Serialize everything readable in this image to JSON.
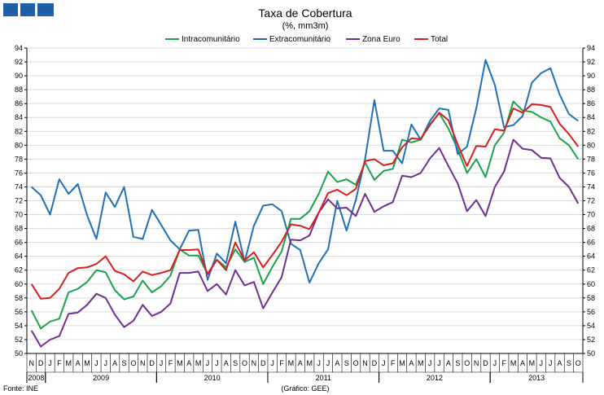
{
  "colors": {
    "logo": "#1f5fa8",
    "intracomunitario": "#1aa34a",
    "extracomunitario": "#2070b8",
    "zona_euro": "#6e2f91",
    "total": "#d81e1e",
    "grid": "#d9d9d9",
    "axis": "#000000"
  },
  "footer": {
    "source": "Fonte: INE",
    "credit": "(Gráfico: GEE)"
  },
  "chart_data": {
    "type": "line",
    "title": "Taxa de Cobertura",
    "subtitle": "(%, mm3m)",
    "legend_position": "top",
    "grid": true,
    "ylim": [
      50,
      94
    ],
    "yticks": [
      50,
      52,
      54,
      56,
      58,
      60,
      62,
      64,
      66,
      68,
      70,
      72,
      74,
      76,
      78,
      80,
      82,
      84,
      86,
      88,
      90,
      92,
      94
    ],
    "y_axes": "left and right, mirrored",
    "x": [
      "N",
      "D",
      "J",
      "F",
      "M",
      "A",
      "M",
      "J",
      "J",
      "A",
      "S",
      "O",
      "N",
      "D",
      "J",
      "F",
      "M",
      "A",
      "M",
      "J",
      "J",
      "A",
      "S",
      "O",
      "N",
      "D",
      "J",
      "F",
      "M",
      "A",
      "M",
      "J",
      "J",
      "A",
      "S",
      "O",
      "N",
      "D",
      "J",
      "F",
      "M",
      "A",
      "M",
      "J",
      "J",
      "A",
      "S",
      "O",
      "N",
      "D",
      "J",
      "F",
      "M",
      "A",
      "M",
      "J",
      "J",
      "A",
      "S",
      "O"
    ],
    "year_groups": [
      {
        "label": "2008",
        "start": 0,
        "count": 2
      },
      {
        "label": "2009",
        "start": 2,
        "count": 12
      },
      {
        "label": "2010",
        "start": 14,
        "count": 12
      },
      {
        "label": "2011",
        "start": 26,
        "count": 12
      },
      {
        "label": "2012",
        "start": 38,
        "count": 12
      },
      {
        "label": "2013",
        "start": 50,
        "count": 10
      }
    ],
    "series": [
      {
        "name": "Intracomunitário",
        "key": "intracomunitario",
        "values": [
          56.2,
          53.6,
          54.6,
          55.0,
          58.8,
          59.3,
          60.3,
          62.0,
          61.7,
          59.1,
          57.8,
          58.2,
          60.5,
          58.8,
          59.7,
          61.2,
          65.0,
          64.1,
          64.1,
          61.5,
          63.5,
          62.4,
          65.0,
          63.2,
          63.8,
          60.0,
          62.5,
          64.7,
          69.4,
          69.4,
          70.5,
          73.0,
          76.2,
          74.7,
          75.1,
          74.3,
          77.5,
          75.0,
          76.3,
          76.6,
          80.8,
          80.4,
          80.8,
          83.0,
          84.6,
          82.4,
          79.4,
          76.0,
          78.0,
          75.4,
          80.0,
          81.8,
          86.3,
          85.0,
          84.8,
          84.0,
          83.4,
          81.0,
          80.0,
          78.0
        ]
      },
      {
        "name": "Extracomunitário",
        "key": "extracomunitario",
        "values": [
          74.0,
          72.8,
          70.0,
          75.1,
          73.0,
          74.4,
          69.9,
          66.5,
          73.2,
          71.1,
          74.0,
          66.8,
          66.5,
          70.7,
          68.5,
          66.3,
          65.0,
          67.7,
          67.8,
          60.6,
          64.4,
          63.0,
          69.0,
          63.2,
          68.4,
          71.3,
          71.5,
          70.5,
          65.8,
          64.9,
          60.2,
          63.0,
          65.0,
          72.0,
          67.7,
          72.1,
          78.0,
          86.5,
          79.2,
          79.2,
          77.4,
          83.0,
          80.8,
          83.5,
          85.3,
          85.1,
          78.7,
          79.8,
          85.3,
          92.3,
          88.7,
          82.6,
          82.9,
          84.2,
          89.0,
          90.4,
          91.1,
          87.3,
          84.5,
          83.5
        ]
      },
      {
        "name": "Zona Euro",
        "key": "zona_euro",
        "values": [
          53.3,
          51.0,
          52.0,
          52.5,
          55.7,
          55.9,
          57.0,
          58.6,
          58.0,
          55.6,
          53.8,
          54.7,
          57.0,
          55.4,
          56.0,
          57.2,
          61.6,
          61.6,
          61.8,
          59.0,
          60.0,
          58.5,
          62.0,
          59.8,
          60.3,
          56.5,
          58.8,
          61.0,
          66.4,
          66.3,
          67.0,
          70.3,
          72.2,
          70.9,
          71.0,
          69.8,
          73.0,
          70.4,
          71.2,
          71.8,
          75.6,
          75.4,
          76.0,
          78.1,
          79.6,
          77.0,
          74.5,
          70.5,
          72.1,
          69.8,
          74.0,
          76.2,
          80.8,
          79.5,
          79.3,
          78.2,
          78.1,
          75.3,
          74.0,
          71.6
        ]
      },
      {
        "name": "Total",
        "key": "total",
        "values": [
          60.0,
          57.9,
          58.0,
          59.3,
          61.6,
          62.3,
          62.4,
          62.9,
          64.0,
          61.9,
          61.4,
          60.4,
          61.8,
          61.3,
          61.6,
          62.0,
          64.9,
          64.9,
          65.0,
          61.4,
          63.5,
          62.0,
          66.0,
          63.4,
          64.6,
          62.4,
          64.2,
          66.1,
          68.6,
          68.4,
          67.9,
          70.3,
          73.1,
          73.6,
          72.8,
          73.7,
          77.7,
          78.0,
          77.1,
          77.4,
          79.7,
          81.0,
          80.9,
          82.9,
          84.7,
          83.6,
          80.1,
          77.0,
          79.9,
          79.8,
          82.3,
          82.1,
          85.3,
          84.7,
          85.9,
          85.8,
          85.5,
          83.1,
          81.6,
          79.8
        ]
      }
    ]
  }
}
